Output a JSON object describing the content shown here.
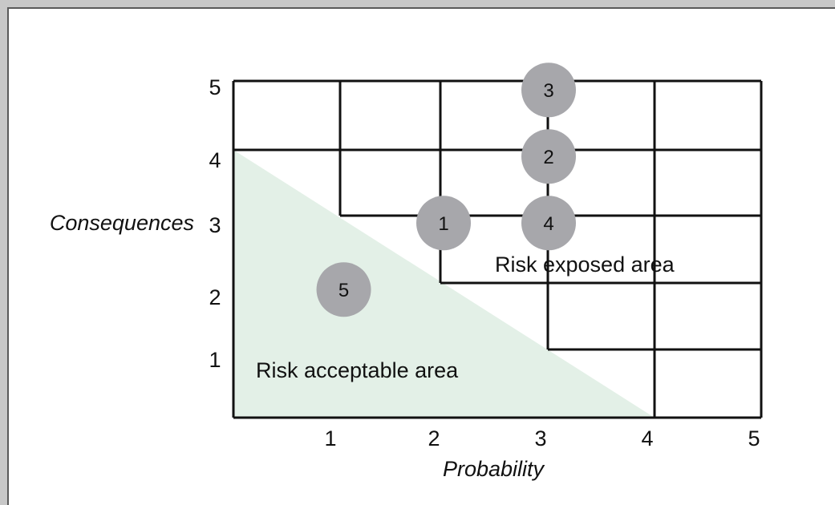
{
  "diagram": {
    "x_axis_title": "Probability",
    "y_axis_title": "Consequences",
    "x_ticks": [
      "1",
      "2",
      "3",
      "4",
      "5"
    ],
    "y_ticks": [
      "1",
      "2",
      "3",
      "4",
      "5"
    ],
    "areas": {
      "acceptable": "Risk acceptable area",
      "exposed": "Risk exposed area"
    },
    "colors": {
      "acceptable_fill": "#e3f0e7",
      "bubble_fill": "#a7a7ab",
      "grid_line": "#111111"
    },
    "risks": [
      {
        "label": "1",
        "probability": 2.0,
        "consequence": 3.0
      },
      {
        "label": "2",
        "probability": 3.0,
        "consequence": 4.0
      },
      {
        "label": "3",
        "probability": 3.0,
        "consequence": 5.0
      },
      {
        "label": "4",
        "probability": 3.0,
        "consequence": 3.0
      },
      {
        "label": "5",
        "probability": 1.05,
        "consequence": 2.0
      }
    ]
  }
}
